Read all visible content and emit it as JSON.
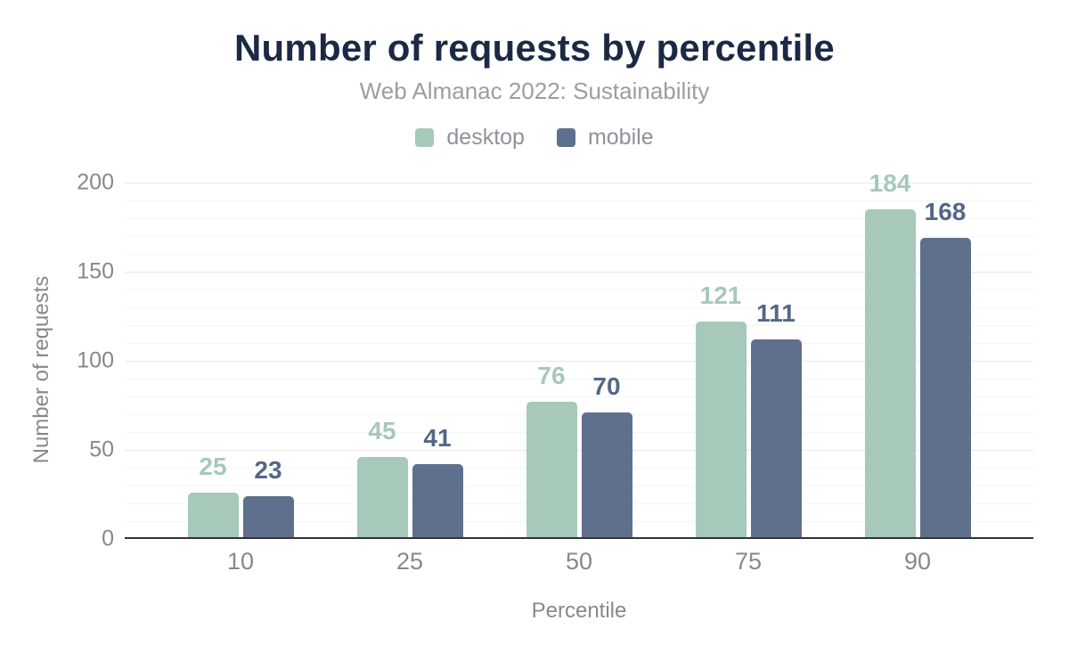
{
  "header": {
    "title": "Number of requests by percentile",
    "subtitle": "Web Almanac 2022: Sustainability"
  },
  "chart_data": {
    "type": "bar",
    "title": "Number of requests by percentile",
    "subtitle": "Web Almanac 2022: Sustainability",
    "categories": [
      "10",
      "25",
      "50",
      "75",
      "90"
    ],
    "series": [
      {
        "name": "desktop",
        "color": "#a6c9b9",
        "label_color": "#a6c9b9",
        "values": [
          25,
          45,
          76,
          121,
          184
        ]
      },
      {
        "name": "mobile",
        "color": "#5f708c",
        "label_color": "#546789",
        "values": [
          23,
          41,
          70,
          111,
          168
        ]
      }
    ],
    "xlabel": "Percentile",
    "ylabel": "Number of requests",
    "ylim": [
      0,
      200
    ],
    "y_ticks": [
      0,
      50,
      100,
      150,
      200
    ],
    "grid": {
      "major_interval": 50,
      "minor_interval": 10,
      "gridlines_on": true
    },
    "legend_position": "top-center",
    "value_labels": "above bars, colored per series"
  },
  "colors": {
    "title_text": "#1c2945",
    "subtitle_text": "#9a9ea3",
    "tick_text": "#85898e",
    "legend_text": "#8e9399",
    "desktop": "#a6c9b9",
    "mobile": "#5f708c",
    "grid_major": "#e7e9ec",
    "grid_minor": "#f4f5f6",
    "axis_line": "#2e3338",
    "background": "#ffffff"
  }
}
